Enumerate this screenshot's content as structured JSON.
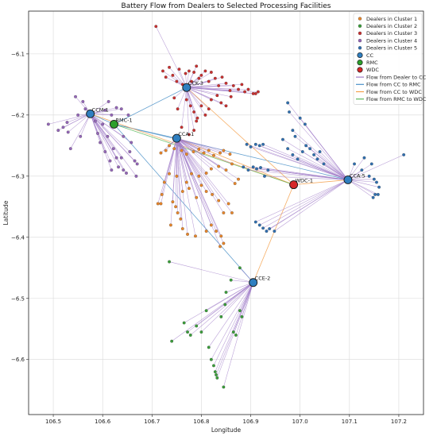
{
  "chart_data": {
    "type": "scatter",
    "title": "Battery Flow from Dealers to Selected Processing Facilities",
    "xlabel": "Longitude",
    "ylabel": "Latitude",
    "xlim": [
      106.45,
      107.25
    ],
    "ylim": [
      -6.69,
      -6.03
    ],
    "xticks": [
      "106.5",
      "106.6",
      "106.7",
      "106.8",
      "106.9",
      "107.0",
      "107.1",
      "107.2"
    ],
    "yticks": [
      "-6.1",
      "-6.2",
      "-6.3",
      "-6.4",
      "-6.5",
      "-6.6"
    ],
    "grid": true,
    "legend_position": "top-right",
    "colors": {
      "cluster1": "#e8862a",
      "cluster2": "#3a9e3a",
      "cluster3": "#c93030",
      "cluster4": "#9466b8",
      "cluster5": "#2f6fb0",
      "cc": "#2f7fc0",
      "rmc": "#2ca02c",
      "wdc": "#d62728",
      "flow_dealer_cc": "#a07cc8",
      "flow_cc_rmc": "#4a90c8",
      "flow_cc_wdc": "#f4a04a",
      "flow_rmc_wdc": "#5cb85c"
    },
    "legend": [
      {
        "label": "Dealers in Cluster 1",
        "kind": "dot",
        "color": "cluster1"
      },
      {
        "label": "Dealers in Cluster 2",
        "kind": "dot",
        "color": "cluster2"
      },
      {
        "label": "Dealers in Cluster 3",
        "kind": "dot",
        "color": "cluster3"
      },
      {
        "label": "Dealers in Cluster 4",
        "kind": "dot",
        "color": "cluster4"
      },
      {
        "label": "Dealers in Cluster 5",
        "kind": "dot",
        "color": "cluster5"
      },
      {
        "label": "CC",
        "kind": "big",
        "color": "cc"
      },
      {
        "label": "RMC",
        "kind": "big",
        "color": "rmc"
      },
      {
        "label": "WDC",
        "kind": "big",
        "color": "wdc"
      },
      {
        "label": "Flow from Dealer to CC",
        "kind": "line",
        "color": "flow_dealer_cc"
      },
      {
        "label": "Flow from CC to RMC",
        "kind": "line",
        "color": "flow_cc_rmc"
      },
      {
        "label": "Flow from CC to WDC",
        "kind": "line",
        "color": "flow_cc_wdc"
      },
      {
        "label": "Flow from RMC to WDC",
        "kind": "line",
        "color": "flow_rmc_wdc"
      }
    ],
    "facilities": [
      {
        "name": "CCM-1",
        "type": "cc",
        "x": 106.575,
        "y": -6.198
      },
      {
        "name": "CCK-3",
        "type": "cc",
        "x": 106.77,
        "y": -6.155
      },
      {
        "name": "CCA-1",
        "type": "cc",
        "x": 106.75,
        "y": -6.238
      },
      {
        "name": "CCA-5",
        "type": "cc",
        "x": 107.097,
        "y": -6.306
      },
      {
        "name": "CCE-2",
        "type": "cc",
        "x": 106.905,
        "y": -6.474
      },
      {
        "name": "RMC-1",
        "type": "rmc",
        "x": 106.623,
        "y": -6.215
      },
      {
        "name": "WDC-1",
        "type": "wdc",
        "x": 106.987,
        "y": -6.314
      }
    ],
    "facility_flows": [
      {
        "from": "CCM-1",
        "to": "RMC-1",
        "kind": "flow_cc_rmc"
      },
      {
        "from": "CCK-3",
        "to": "RMC-1",
        "kind": "flow_cc_rmc"
      },
      {
        "from": "CCA-1",
        "to": "RMC-1",
        "kind": "flow_cc_rmc"
      },
      {
        "from": "CCA-5",
        "to": "RMC-1",
        "kind": "flow_cc_rmc"
      },
      {
        "from": "CCE-2",
        "to": "RMC-1",
        "kind": "flow_cc_rmc"
      },
      {
        "from": "CCM-1",
        "to": "WDC-1",
        "kind": "flow_cc_wdc"
      },
      {
        "from": "CCK-3",
        "to": "WDC-1",
        "kind": "flow_cc_wdc"
      },
      {
        "from": "CCA-1",
        "to": "WDC-1",
        "kind": "flow_cc_wdc"
      },
      {
        "from": "CCA-5",
        "to": "WDC-1",
        "kind": "flow_cc_wdc"
      },
      {
        "from": "CCE-2",
        "to": "WDC-1",
        "kind": "flow_cc_wdc"
      },
      {
        "from": "RMC-1",
        "to": "WDC-1",
        "kind": "flow_rmc_wdc"
      }
    ],
    "clusters": [
      {
        "name": "Dealers in Cluster 1",
        "color": "cluster1",
        "cc": "CCA-1",
        "points": [
          [
            106.718,
            -6.262
          ],
          [
            106.728,
            -6.258
          ],
          [
            106.735,
            -6.25
          ],
          [
            106.745,
            -6.255
          ],
          [
            106.76,
            -6.258
          ],
          [
            106.77,
            -6.264
          ],
          [
            106.784,
            -6.26
          ],
          [
            106.795,
            -6.256
          ],
          [
            106.805,
            -6.262
          ],
          [
            106.815,
            -6.258
          ],
          [
            106.825,
            -6.266
          ],
          [
            106.838,
            -6.262
          ],
          [
            106.845,
            -6.258
          ],
          [
            106.858,
            -6.264
          ],
          [
            106.862,
            -6.28
          ],
          [
            106.85,
            -6.29
          ],
          [
            106.835,
            -6.284
          ],
          [
            106.82,
            -6.288
          ],
          [
            106.81,
            -6.295
          ],
          [
            106.795,
            -6.3
          ],
          [
            106.78,
            -6.296
          ],
          [
            106.77,
            -6.31
          ],
          [
            106.75,
            -6.3
          ],
          [
            106.735,
            -6.296
          ],
          [
            106.725,
            -6.31
          ],
          [
            106.72,
            -6.33
          ],
          [
            106.718,
            -6.345
          ],
          [
            106.712,
            -6.345
          ],
          [
            106.742,
            -6.342
          ],
          [
            106.748,
            -6.35
          ],
          [
            106.752,
            -6.36
          ],
          [
            106.758,
            -6.37
          ],
          [
            106.738,
            -6.38
          ],
          [
            106.762,
            -6.386
          ],
          [
            106.772,
            -6.395
          ],
          [
            106.788,
            -6.398
          ],
          [
            106.81,
            -6.39
          ],
          [
            106.82,
            -6.38
          ],
          [
            106.83,
            -6.39
          ],
          [
            106.84,
            -6.398
          ],
          [
            106.845,
            -6.41
          ],
          [
            106.838,
            -6.415
          ],
          [
            106.822,
            -6.33
          ],
          [
            106.835,
            -6.34
          ],
          [
            106.845,
            -6.36
          ],
          [
            106.855,
            -6.345
          ],
          [
            106.862,
            -6.36
          ],
          [
            106.868,
            -6.312
          ],
          [
            106.875,
            -6.305
          ],
          [
            106.8,
            -6.315
          ],
          [
            106.81,
            -6.325
          ],
          [
            106.79,
            -6.335
          ],
          [
            106.775,
            -6.32
          ],
          [
            106.762,
            -6.325
          ]
        ]
      },
      {
        "name": "Dealers in Cluster 2",
        "color": "cluster2",
        "cc": "CCE-2",
        "points": [
          [
            106.735,
            -6.44
          ],
          [
            106.74,
            -6.57
          ],
          [
            106.765,
            -6.54
          ],
          [
            106.772,
            -6.555
          ],
          [
            106.778,
            -6.56
          ],
          [
            106.79,
            -6.545
          ],
          [
            106.8,
            -6.555
          ],
          [
            106.81,
            -6.52
          ],
          [
            106.815,
            -6.58
          ],
          [
            106.82,
            -6.6
          ],
          [
            106.825,
            -6.61
          ],
          [
            106.828,
            -6.62
          ],
          [
            106.832,
            -6.63
          ],
          [
            106.83,
            -6.625
          ],
          [
            106.84,
            -6.53
          ],
          [
            106.848,
            -6.51
          ],
          [
            106.85,
            -6.49
          ],
          [
            106.845,
            -6.645
          ],
          [
            106.86,
            -6.47
          ],
          [
            106.865,
            -6.555
          ],
          [
            106.87,
            -6.56
          ],
          [
            106.878,
            -6.52
          ],
          [
            106.882,
            -6.53
          ],
          [
            106.878,
            -6.45
          ]
        ]
      },
      {
        "name": "Dealers in Cluster 3",
        "color": "cluster3",
        "cc": "CCK-3",
        "points": [
          [
            106.708,
            -6.055
          ],
          [
            106.722,
            -6.128
          ],
          [
            106.728,
            -6.138
          ],
          [
            106.735,
            -6.122
          ],
          [
            106.742,
            -6.135
          ],
          [
            106.75,
            -6.145
          ],
          [
            106.755,
            -6.125
          ],
          [
            106.762,
            -6.15
          ],
          [
            106.768,
            -6.132
          ],
          [
            106.775,
            -6.128
          ],
          [
            106.78,
            -6.145
          ],
          [
            106.785,
            -6.13
          ],
          [
            106.79,
            -6.12
          ],
          [
            106.795,
            -6.14
          ],
          [
            106.8,
            -6.135
          ],
          [
            106.808,
            -6.128
          ],
          [
            106.815,
            -6.145
          ],
          [
            106.82,
            -6.13
          ],
          [
            106.828,
            -6.14
          ],
          [
            106.835,
            -6.152
          ],
          [
            106.842,
            -6.138
          ],
          [
            106.85,
            -6.148
          ],
          [
            106.858,
            -6.16
          ],
          [
            106.865,
            -6.152
          ],
          [
            106.875,
            -6.158
          ],
          [
            106.882,
            -6.15
          ],
          [
            106.888,
            -6.162
          ],
          [
            106.895,
            -6.158
          ],
          [
            106.905,
            -6.165
          ],
          [
            106.915,
            -6.162
          ],
          [
            106.91,
            -6.165
          ],
          [
            106.77,
            -6.175
          ],
          [
            106.778,
            -6.185
          ],
          [
            106.785,
            -6.195
          ],
          [
            106.792,
            -6.205
          ],
          [
            106.8,
            -6.185
          ],
          [
            106.808,
            -6.2
          ],
          [
            106.815,
            -6.19
          ],
          [
            106.82,
            -6.175
          ],
          [
            106.79,
            -6.21
          ],
          [
            106.785,
            -6.225
          ],
          [
            106.775,
            -6.232
          ],
          [
            106.76,
            -6.22
          ],
          [
            106.752,
            -6.19
          ],
          [
            106.745,
            -6.172
          ],
          [
            106.832,
            -6.168
          ],
          [
            106.84,
            -6.18
          ],
          [
            106.85,
            -6.185
          ],
          [
            106.86,
            -6.17
          ]
        ]
      },
      {
        "name": "Dealers in Cluster 4",
        "color": "cluster4",
        "cc": "CCM-1",
        "points": [
          [
            106.49,
            -6.215
          ],
          [
            106.51,
            -6.225
          ],
          [
            106.52,
            -6.22
          ],
          [
            106.528,
            -6.212
          ],
          [
            106.53,
            -6.228
          ],
          [
            106.535,
            -6.255
          ],
          [
            106.545,
            -6.17
          ],
          [
            106.55,
            -6.2
          ],
          [
            106.555,
            -6.235
          ],
          [
            106.56,
            -6.178
          ],
          [
            106.565,
            -6.19
          ],
          [
            106.585,
            -6.21
          ],
          [
            106.59,
            -6.23
          ],
          [
            106.595,
            -6.245
          ],
          [
            106.6,
            -6.215
          ],
          [
            106.605,
            -6.26
          ],
          [
            106.61,
            -6.235
          ],
          [
            106.615,
            -6.275
          ],
          [
            106.618,
            -6.29
          ],
          [
            106.622,
            -6.255
          ],
          [
            106.628,
            -6.27
          ],
          [
            106.632,
            -6.285
          ],
          [
            106.638,
            -6.27
          ],
          [
            106.642,
            -6.29
          ],
          [
            106.648,
            -6.295
          ],
          [
            106.655,
            -6.26
          ],
          [
            106.658,
            -6.245
          ],
          [
            106.665,
            -6.275
          ],
          [
            106.67,
            -6.28
          ],
          [
            106.668,
            -6.3
          ],
          [
            106.642,
            -6.235
          ],
          [
            106.652,
            -6.2
          ],
          [
            106.638,
            -6.19
          ],
          [
            106.628,
            -6.188
          ],
          [
            106.618,
            -6.2
          ],
          [
            106.605,
            -6.192
          ],
          [
            106.612,
            -6.178
          ]
        ]
      },
      {
        "name": "Dealers in Cluster 5",
        "color": "cluster5",
        "cc": "CCA-5",
        "points": [
          [
            106.885,
            -6.285
          ],
          [
            106.895,
            -6.29
          ],
          [
            106.905,
            -6.285
          ],
          [
            106.912,
            -6.288
          ],
          [
            106.92,
            -6.286
          ],
          [
            106.928,
            -6.3
          ],
          [
            106.935,
            -6.29
          ],
          [
            106.892,
            -6.248
          ],
          [
            106.9,
            -6.252
          ],
          [
            106.91,
            -6.248
          ],
          [
            106.918,
            -6.25
          ],
          [
            106.925,
            -6.248
          ],
          [
            106.965,
            -6.24
          ],
          [
            106.975,
            -6.255
          ],
          [
            106.985,
            -6.265
          ],
          [
            106.995,
            -6.272
          ],
          [
            107.005,
            -6.26
          ],
          [
            107.012,
            -6.25
          ],
          [
            107.02,
            -6.255
          ],
          [
            107.028,
            -6.265
          ],
          [
            107.035,
            -6.272
          ],
          [
            107.04,
            -6.26
          ],
          [
            107.048,
            -6.28
          ],
          [
            106.975,
            -6.18
          ],
          [
            106.978,
            -6.195
          ],
          [
            106.985,
            -6.225
          ],
          [
            106.99,
            -6.235
          ],
          [
            107.0,
            -6.205
          ],
          [
            107.01,
            -6.215
          ],
          [
            106.91,
            -6.375
          ],
          [
            106.918,
            -6.38
          ],
          [
            106.925,
            -6.385
          ],
          [
            106.932,
            -6.39
          ],
          [
            106.938,
            -6.386
          ],
          [
            106.948,
            -6.39
          ],
          [
            107.11,
            -6.28
          ],
          [
            107.125,
            -6.29
          ],
          [
            107.14,
            -6.3
          ],
          [
            107.15,
            -6.305
          ],
          [
            107.155,
            -6.31
          ],
          [
            107.145,
            -6.28
          ],
          [
            107.16,
            -6.318
          ],
          [
            107.148,
            -6.335
          ],
          [
            107.152,
            -6.33
          ],
          [
            107.158,
            -6.33
          ],
          [
            107.21,
            -6.265
          ],
          [
            107.13,
            -6.27
          ]
        ]
      }
    ]
  }
}
